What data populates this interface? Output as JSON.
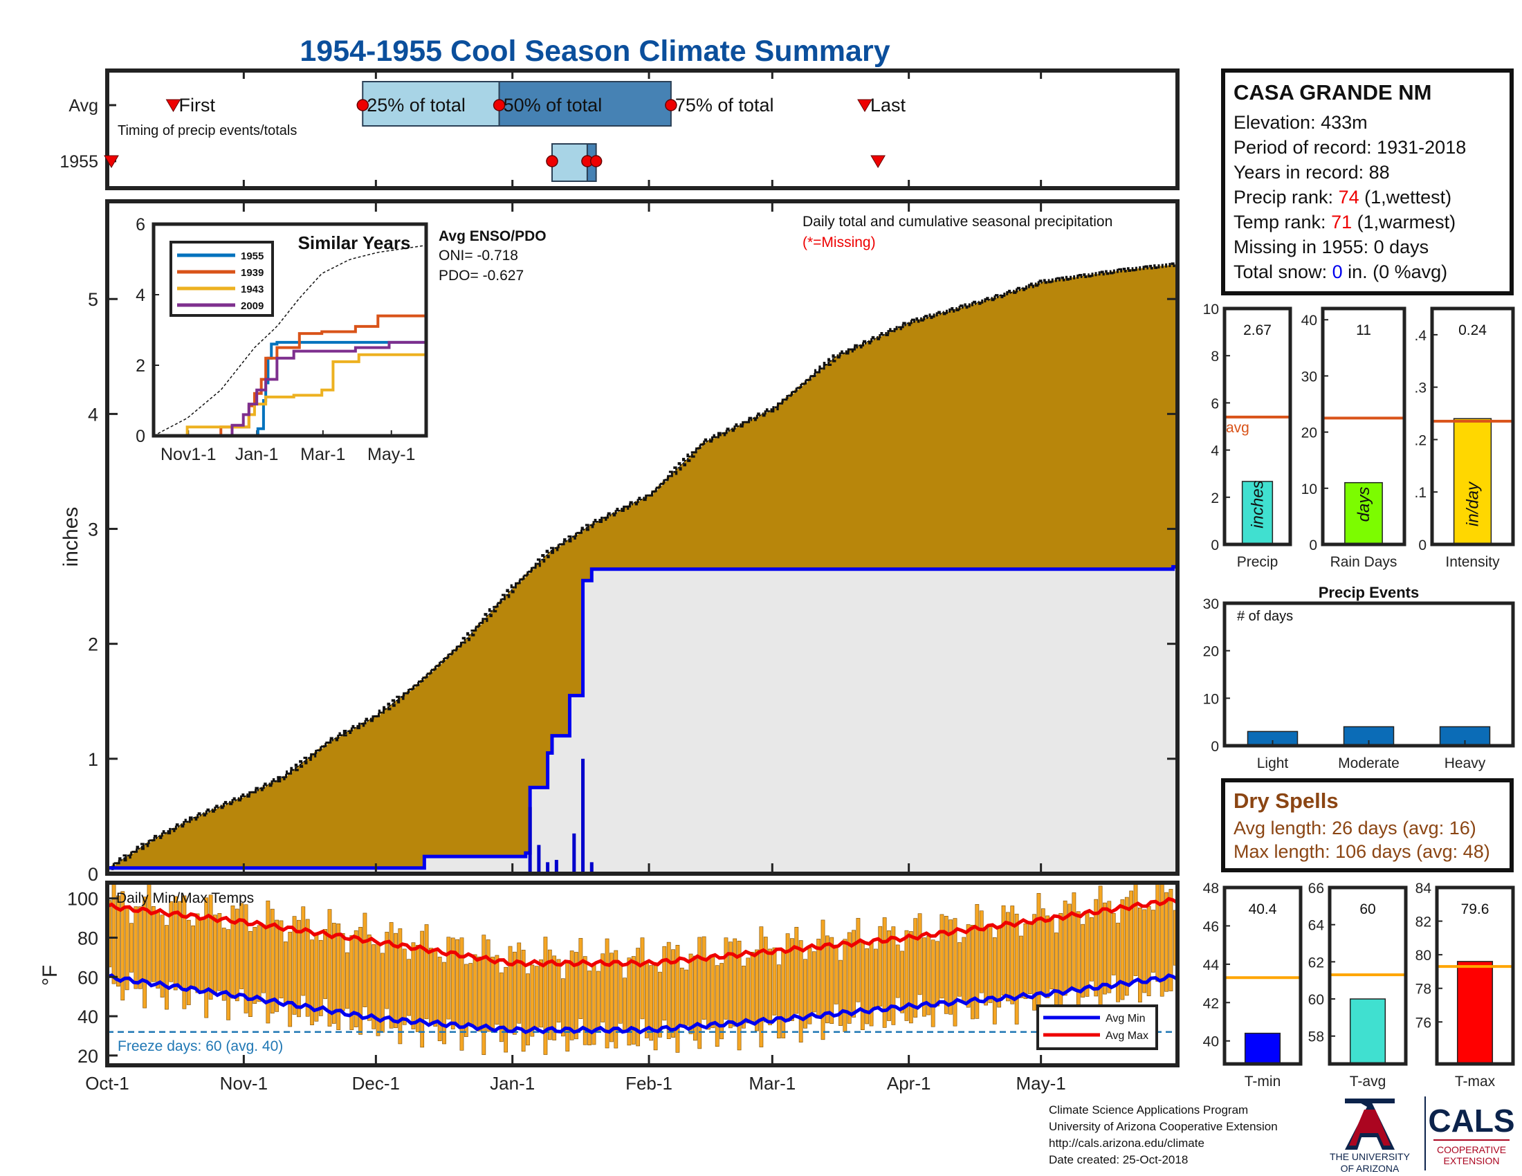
{
  "title": "1954-1955 Cool Season Climate Summary",
  "colors": {
    "title": "#0b4f9c",
    "cum_avg_fill": "#b8860b",
    "cum_1955_fill": "#e8e8e8",
    "cum_1955_line": "#0000ee",
    "marker": "#ee0000",
    "box_light": "#a8d4e6",
    "box_dark": "#4682b4",
    "temp_bar": "#f5a623",
    "avg_max_line": "#ee0000",
    "avg_min_line": "#0000ee",
    "freeze_line": "#1f77b4",
    "avg_line_orange": "#d95319",
    "precip_bar": "#40e0d0",
    "raindays_bar": "#7cfc00",
    "intensity_bar": "#ffd700",
    "events_bar": "#0b6cb7",
    "tmin_bar": "#0000ff",
    "tavg_bar": "#40e0d0",
    "tmax_bar": "#ff0000",
    "dry_text": "#8b4513",
    "ua_red": "#ab0520",
    "ua_navy": "#0c234b"
  },
  "timing": {
    "row_labels": [
      "Avg",
      "1955"
    ],
    "caption": "Timing of precip events/totals",
    "first_label": "First",
    "last_label": "Last",
    "q25_label": "25% of total",
    "q50_label": "50% of total",
    "q75_label": "75% of total",
    "avg": {
      "first": 15,
      "q25": 58,
      "q50": 89,
      "q75": 128,
      "last": 172
    },
    "y1955": {
      "first": 0,
      "q25": 101,
      "q50": 109,
      "q75": 111,
      "last": 175
    }
  },
  "x_axis": {
    "ticks": [
      {
        "day": 0,
        "label": "Oct-1"
      },
      {
        "day": 31,
        "label": "Nov-1"
      },
      {
        "day": 61,
        "label": "Dec-1"
      },
      {
        "day": 92,
        "label": "Jan-1"
      },
      {
        "day": 123,
        "label": "Feb-1"
      },
      {
        "day": 151,
        "label": "Mar-1"
      },
      {
        "day": 182,
        "label": "Apr-1"
      },
      {
        "day": 212,
        "label": "May-1"
      }
    ],
    "days": 243
  },
  "main": {
    "ylabel": "inches",
    "annotation": "Daily total and cumulative seasonal precipitation",
    "missing_note": "(*=Missing)",
    "ylim": [
      0,
      5.85
    ],
    "yticks": [
      0,
      1,
      2,
      3,
      4,
      5
    ]
  },
  "inset": {
    "title": "Similar Years",
    "xticks": [
      "Nov1-1",
      "Jan-1",
      "Mar-1",
      "May-1"
    ],
    "yticks": [
      0,
      2,
      4,
      6
    ],
    "legend": [
      "1955",
      "1939",
      "1943",
      "2009"
    ],
    "enso_title": "Avg ENSO/PDO",
    "oni": "ONI= -0.718",
    "pdo": "PDO= -0.627"
  },
  "station": {
    "name": "CASA GRANDE NM",
    "elevation": "Elevation: 433m",
    "period": "Period of record: 1931-2018",
    "years": "Years in record: 88",
    "precip_rank_pre": "Precip rank: ",
    "precip_rank_val": "74",
    "precip_rank_post": " (1,wettest)",
    "temp_rank_pre": "Temp rank: ",
    "temp_rank_val": "71",
    "temp_rank_post": " (1,warmest)",
    "missing": "Missing in 1955: 0 days",
    "snow_pre": "Total snow: ",
    "snow_val": "0",
    "snow_post": " in. (0 %avg)"
  },
  "summary": {
    "precip": {
      "value": 2.67,
      "avg": 5.4,
      "label": "Precip",
      "unit": "inches",
      "avg_label": "avg",
      "ylim": [
        0,
        10
      ],
      "yticks": [
        0,
        2,
        4,
        6,
        8,
        10
      ],
      "display": "2.67"
    },
    "raindays": {
      "value": 11,
      "avg": 22.5,
      "label": "Rain Days",
      "unit": "days",
      "ylim": [
        0,
        42
      ],
      "yticks": [
        0,
        10,
        20,
        30,
        40
      ],
      "display": "11"
    },
    "intensity": {
      "value": 0.24,
      "avg": 0.235,
      "label": "Intensity",
      "unit": "in/day",
      "ylim": [
        0,
        0.45
      ],
      "yticks": [
        0,
        0.1,
        0.2,
        0.3,
        0.4
      ],
      "display": "0.24"
    }
  },
  "events": {
    "title": "Precip Events",
    "ylabel_note": "# of days",
    "categories": [
      "Light",
      "Moderate",
      "Heavy"
    ],
    "values": [
      3,
      4,
      4
    ],
    "ylim": [
      0,
      30
    ],
    "yticks": [
      0,
      10,
      20,
      30
    ]
  },
  "dry": {
    "title": "Dry Spells",
    "avg": "Avg length: 26 days (avg: 16)",
    "max": "Max length: 106 days (avg: 48)"
  },
  "temps": {
    "title": "Daily Min/Max Temps",
    "ylabel": "°F",
    "freeze_label": "Freeze days: 60 (avg. 40)",
    "ylim": [
      15,
      108
    ],
    "yticks": [
      20,
      40,
      60,
      80,
      100
    ],
    "legend_min": "Avg Min",
    "legend_max": "Avg Max",
    "freeze_temp": 32
  },
  "temp_summary": {
    "tmin": {
      "value": 40.4,
      "avg": 43.3,
      "label": "T-min",
      "display": "40.4",
      "ylim": [
        38.8,
        48
      ],
      "yticks": [
        40,
        42,
        44,
        46,
        48
      ]
    },
    "tavg": {
      "value": 60,
      "avg": 61.3,
      "label": "T-avg",
      "display": "60",
      "ylim": [
        56.5,
        66
      ],
      "yticks": [
        58,
        60,
        62,
        64,
        66
      ]
    },
    "tmax": {
      "value": 79.6,
      "avg": 79.3,
      "label": "T-max",
      "display": "79.6",
      "ylim": [
        73.5,
        84
      ],
      "yticks": [
        76,
        78,
        80,
        82,
        84
      ]
    }
  },
  "footer": {
    "line1": "Climate Science Applications Program",
    "line2": "University of Arizona Cooperative Extension",
    "line3": "http://cals.arizona.edu/climate",
    "line4": " Date created: 25-Oct-2018",
    "ua_line1": "THE UNIVERSITY",
    "ua_line2": "OF ARIZONA",
    "cals": "CALS",
    "cals_sub1": "COOPERATIVE",
    "cals_sub2": "EXTENSION"
  },
  "chart_data": [
    {
      "type": "area",
      "title": "Daily total and cumulative seasonal precipitation",
      "ylabel": "inches",
      "ylim": [
        0,
        5.85
      ],
      "x_unit": "days since Oct-1",
      "series": [
        {
          "name": "Avg",
          "x": [
            0,
            10,
            20,
            31,
            40,
            50,
            61,
            70,
            80,
            92,
            100,
            110,
            123,
            135,
            151,
            165,
            182,
            200,
            212,
            230,
            242
          ],
          "values": [
            0.05,
            0.3,
            0.5,
            0.68,
            0.85,
            1.15,
            1.38,
            1.65,
            2.0,
            2.5,
            2.8,
            3.05,
            3.3,
            3.75,
            4.05,
            4.5,
            4.8,
            5.0,
            5.15,
            5.25,
            5.3
          ]
        },
        {
          "name": "1955",
          "x": [
            0,
            71,
            72,
            95,
            96,
            97,
            100,
            101,
            104,
            105,
            107,
            108,
            110,
            217,
            242
          ],
          "values": [
            0.05,
            0.05,
            0.15,
            0.18,
            0.75,
            0.75,
            1.05,
            1.2,
            1.2,
            1.55,
            1.55,
            2.55,
            2.65,
            2.65,
            2.67
          ]
        },
        {
          "name": "Daily 1955",
          "x": [
            96,
            98,
            100,
            102,
            106,
            108,
            110
          ],
          "values": [
            0.58,
            0.25,
            0.1,
            0.12,
            0.35,
            1.0,
            0.1
          ]
        }
      ]
    },
    {
      "type": "line",
      "title": "Similar Years",
      "ylim": [
        0,
        6
      ],
      "x_unit": "days since Oct-1",
      "series": [
        {
          "name": "Avg",
          "x": [
            0,
            30,
            60,
            90,
            110,
            130,
            150,
            175,
            200,
            243
          ],
          "values": [
            0,
            0.5,
            1.3,
            2.5,
            3.1,
            3.9,
            4.6,
            5.0,
            5.2,
            5.4
          ]
        },
        {
          "name": "1955",
          "x": [
            0,
            90,
            93,
            96,
            98,
            100,
            102,
            105,
            108,
            110,
            243
          ],
          "values": [
            0,
            0,
            0.2,
            0.2,
            1.0,
            1.5,
            2.2,
            2.6,
            2.6,
            2.65,
            2.67
          ]
        },
        {
          "name": "1939",
          "x": [
            0,
            55,
            60,
            80,
            85,
            90,
            96,
            100,
            110,
            130,
            150,
            180,
            200,
            243
          ],
          "values": [
            0,
            0,
            0.25,
            0.25,
            0.85,
            1.2,
            1.6,
            2.2,
            2.5,
            2.9,
            2.95,
            3.1,
            3.4,
            3.45
          ]
        },
        {
          "name": "1943",
          "x": [
            0,
            30,
            60,
            85,
            90,
            100,
            125,
            150,
            160,
            183,
            243
          ],
          "values": [
            0,
            0.25,
            0.25,
            0.6,
            0.9,
            1.1,
            1.15,
            1.3,
            2.1,
            2.3,
            2.3
          ]
        },
        {
          "name": "2009",
          "x": [
            0,
            65,
            70,
            80,
            85,
            92,
            100,
            110,
            125,
            150,
            180,
            210,
            243
          ],
          "values": [
            0,
            0,
            0.3,
            0.6,
            0.9,
            1.3,
            1.6,
            2.2,
            2.4,
            2.4,
            2.5,
            2.65,
            2.7
          ]
        }
      ]
    },
    {
      "type": "bar",
      "title": "Precip Events",
      "categories": [
        "Light",
        "Moderate",
        "Heavy"
      ],
      "values": [
        3,
        4,
        4
      ],
      "ylim": [
        0,
        30
      ]
    },
    {
      "type": "line",
      "title": "Daily Min/Max Temps",
      "ylim": [
        15,
        108
      ],
      "x_unit": "days since Oct-1",
      "series": [
        {
          "name": "Avg Max",
          "x": [
            0,
            31,
            61,
            92,
            123,
            151,
            182,
            212,
            242
          ],
          "values": [
            96,
            88,
            78,
            67,
            67,
            73,
            80,
            89,
            99
          ]
        },
        {
          "name": "Avg Min",
          "x": [
            0,
            31,
            61,
            92,
            123,
            151,
            182,
            212,
            242
          ],
          "values": [
            60,
            50,
            39,
            33,
            33,
            38,
            45,
            51,
            60
          ]
        }
      ]
    }
  ]
}
